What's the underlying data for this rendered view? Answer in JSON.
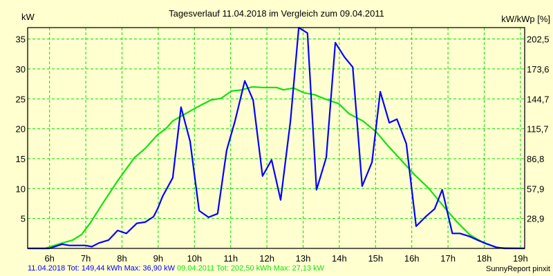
{
  "chart_data": {
    "type": "line",
    "title": "Tagesverlauf 11.04.2018 im Vergleich zum 09.04.2011",
    "ylabel": "kW",
    "ylabel_right": "kW/kWp [%]",
    "xlim": [
      5.4,
      19.12
    ],
    "ylim": [
      0,
      36.9
    ],
    "grid": true,
    "x_ticks": [
      {
        "v": 6,
        "label": "6h"
      },
      {
        "v": 7,
        "label": "7h"
      },
      {
        "v": 8,
        "label": "8h"
      },
      {
        "v": 9,
        "label": "9h"
      },
      {
        "v": 10,
        "label": "10h"
      },
      {
        "v": 11,
        "label": "11h"
      },
      {
        "v": 12,
        "label": "12h"
      },
      {
        "v": 13,
        "label": "13h"
      },
      {
        "v": 14,
        "label": "14h"
      },
      {
        "v": 15,
        "label": "15h"
      },
      {
        "v": 16,
        "label": "16h"
      },
      {
        "v": 17,
        "label": "17h"
      },
      {
        "v": 18,
        "label": "18h"
      },
      {
        "v": 19,
        "label": "19h"
      }
    ],
    "y_ticks": [
      {
        "v": 5,
        "label": "5"
      },
      {
        "v": 10,
        "label": "10"
      },
      {
        "v": 15,
        "label": "15"
      },
      {
        "v": 20,
        "label": "20"
      },
      {
        "v": 25,
        "label": "25"
      },
      {
        "v": 30,
        "label": "30"
      },
      {
        "v": 35,
        "label": "35"
      }
    ],
    "y_ticks_right": [
      {
        "v": 5,
        "label": "28,9"
      },
      {
        "v": 10,
        "label": "57,9"
      },
      {
        "v": 15,
        "label": "86,8"
      },
      {
        "v": 20,
        "label": "115,7"
      },
      {
        "v": 25,
        "label": "144,7"
      },
      {
        "v": 30,
        "label": "173,6"
      },
      {
        "v": 35,
        "label": "202,5"
      }
    ],
    "series": [
      {
        "name": "11.04.2018",
        "color": "#0000ff",
        "x": [
          5.4,
          5.99,
          6.35,
          6.54,
          6.98,
          7.17,
          7.36,
          7.63,
          7.88,
          8.12,
          8.41,
          8.64,
          8.87,
          8.98,
          9.12,
          9.4,
          9.63,
          9.88,
          10.13,
          10.39,
          10.64,
          10.89,
          11.12,
          11.39,
          11.62,
          11.88,
          12.13,
          12.38,
          12.65,
          12.88,
          13.12,
          13.37,
          13.64,
          13.89,
          14.14,
          14.37,
          14.63,
          14.9,
          15.13,
          15.38,
          15.59,
          15.85,
          16.12,
          16.4,
          16.63,
          16.84,
          17.12,
          17.33,
          17.6,
          17.85,
          18.1,
          18.33,
          18.56,
          19.12
        ],
        "y": [
          0,
          0,
          0.7,
          0.5,
          0.5,
          0.3,
          0.9,
          1.4,
          3.0,
          2.5,
          4.2,
          4.4,
          5.3,
          6.6,
          8.7,
          11.8,
          23.6,
          17.9,
          6.3,
          5.2,
          5.8,
          16.4,
          21.3,
          28.0,
          24.8,
          12.1,
          14.8,
          8.1,
          21.3,
          36.9,
          36.0,
          9.8,
          15.2,
          34.4,
          32.0,
          30.3,
          10.4,
          14.4,
          26.2,
          21.0,
          21.6,
          17.5,
          3.7,
          5.4,
          6.6,
          9.8,
          2.5,
          2.5,
          2.0,
          1.3,
          0.7,
          0.2,
          0,
          0
        ]
      },
      {
        "name": "09.04.2011",
        "color": "#10e010",
        "x": [
          5.4,
          5.87,
          6.35,
          6.64,
          6.88,
          7.13,
          7.4,
          7.88,
          8.35,
          8.64,
          8.98,
          9.21,
          9.4,
          9.63,
          10.07,
          10.45,
          10.74,
          11.02,
          11.31,
          11.6,
          11.88,
          12.27,
          12.46,
          12.74,
          13.03,
          13.31,
          13.6,
          13.98,
          14.27,
          14.65,
          15.03,
          15.32,
          15.7,
          16.08,
          16.46,
          16.84,
          17.22,
          17.6,
          17.99,
          18.37,
          19.12
        ],
        "y": [
          0,
          0,
          0.9,
          1.4,
          2.3,
          4.3,
          6.9,
          11.3,
          15.2,
          16.7,
          19.0,
          20.0,
          21.3,
          22.1,
          23.6,
          24.8,
          25.1,
          26.3,
          26.5,
          27.0,
          26.9,
          26.9,
          26.5,
          26.8,
          26.0,
          25.7,
          25.0,
          24.2,
          22.5,
          21.3,
          19.4,
          17.3,
          14.8,
          12.3,
          10.1,
          7.3,
          4.6,
          2.3,
          0.9,
          0.1,
          0
        ]
      }
    ]
  },
  "footer": {
    "series1_text": "11.04.2018 Tot: 149,44 kWh Max: 36,90 kW",
    "series2_text": "09.04.2011 Tot: 202,50 kWh Max: 27,13 kW",
    "credit": "SunnyReport pinxit"
  }
}
